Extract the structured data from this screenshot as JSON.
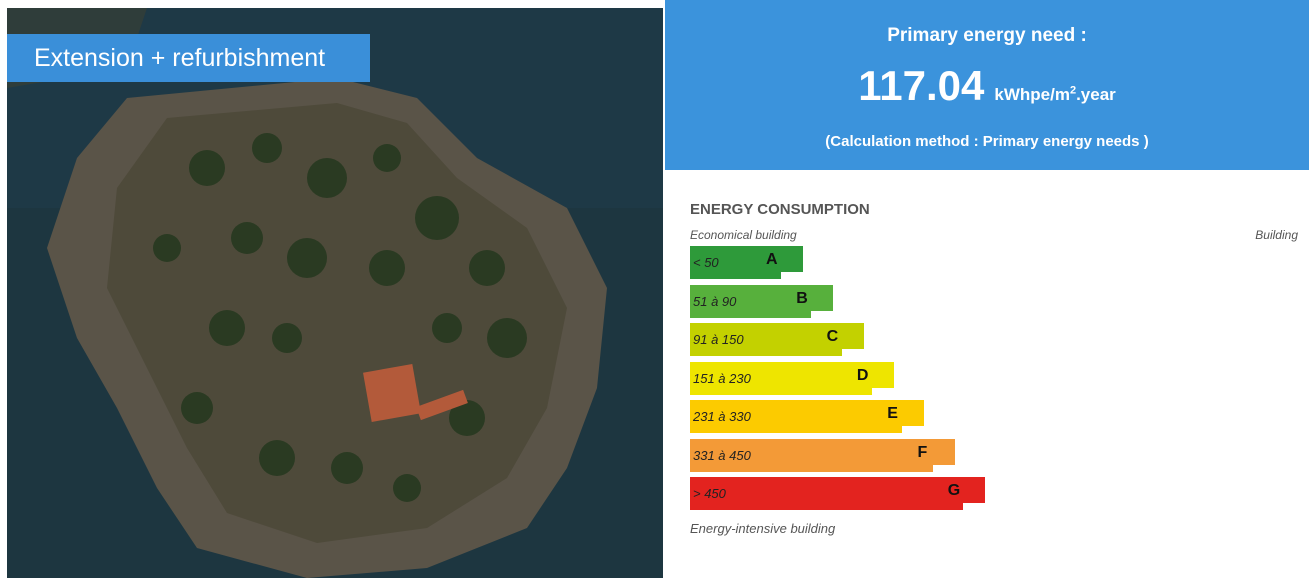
{
  "image_label": "Extension + refurbishment",
  "header": {
    "title": "Primary energy need :",
    "value": "117.04",
    "unit": "kWhpe/m",
    "unit_sup": "2",
    "unit_suffix": ".year",
    "method": "(Calculation method : Primary energy needs )"
  },
  "consumption": {
    "title": "ENERGY CONSUMPTION",
    "top_left": "Economical building",
    "top_right": "Building",
    "bottom": "Energy-intensive building",
    "classes": [
      {
        "range": "< 50",
        "letter": "A",
        "color": "#2e9a3a"
      },
      {
        "range": "51 à 90",
        "letter": "B",
        "color": "#57b03c"
      },
      {
        "range": "91 à 150",
        "letter": "C",
        "color": "#c3d100"
      },
      {
        "range": "151 à 230",
        "letter": "D",
        "color": "#eee500"
      },
      {
        "range": "231 à 330",
        "letter": "E",
        "color": "#fccb00"
      },
      {
        "range": "331 à 450",
        "letter": "F",
        "color": "#f39a37"
      },
      {
        "range": "> 450",
        "letter": "G",
        "color": "#e3231f"
      }
    ]
  }
}
